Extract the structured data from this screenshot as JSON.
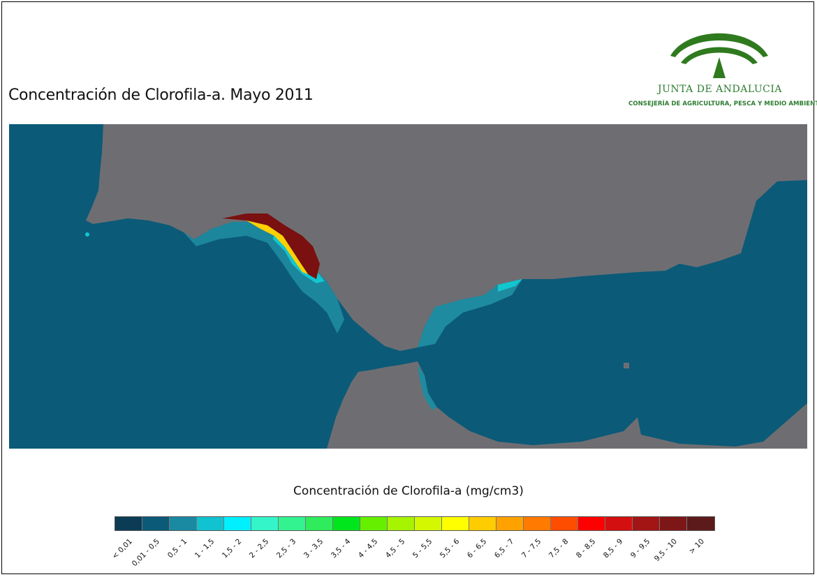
{
  "title": "Concentración de Clorofila-a. Mayo 2011",
  "logo": {
    "name": "JUNTA DE ANDALUCIA",
    "subtitle": "CONSEJERÍA DE AGRICULTURA, PESCA Y MEDIO AMBIENTE",
    "colors": {
      "green": "#2e7d32",
      "olive": "#2f7a1e"
    }
  },
  "map": {
    "colors": {
      "sea": "#0b5a78",
      "land": "#6e6e72",
      "coastal_low": "#1e8ba0",
      "coastal_mid": "#12c6cf",
      "high": "#7a1010"
    }
  },
  "legend": {
    "title": "Concentración de Clorofila-a (mg/cm3)",
    "classes": [
      {
        "label": "< 0,01",
        "color": "#0c3b56"
      },
      {
        "label": "0,01 - 0,5",
        "color": "#0b5a78"
      },
      {
        "label": "0,5 - 1",
        "color": "#1a8aa3"
      },
      {
        "label": "1 - 1,5",
        "color": "#11c2d0"
      },
      {
        "label": "1,5 - 2",
        "color": "#00f0ff"
      },
      {
        "label": "2 - 2,5",
        "color": "#33f5c9"
      },
      {
        "label": "2,5 - 3",
        "color": "#33f290"
      },
      {
        "label": "3 - 3,5",
        "color": "#2fec5c"
      },
      {
        "label": "3,5 - 4",
        "color": "#00e61c"
      },
      {
        "label": "4 - 4,5",
        "color": "#66f000"
      },
      {
        "label": "4,5 - 5",
        "color": "#a6f400"
      },
      {
        "label": "5 - 5,5",
        "color": "#d4f800"
      },
      {
        "label": "5,5 - 6",
        "color": "#ffff00"
      },
      {
        "label": "6 - 6,5",
        "color": "#ffcc00"
      },
      {
        "label": "6,5 - 7",
        "color": "#ffa200"
      },
      {
        "label": "7 - 7,5",
        "color": "#ff7a00"
      },
      {
        "label": "7,5 - 8",
        "color": "#ff4d00"
      },
      {
        "label": "8 - 8,5",
        "color": "#ff0000"
      },
      {
        "label": "8,5 - 9",
        "color": "#d40f0f"
      },
      {
        "label": "9 - 9,5",
        "color": "#a31515"
      },
      {
        "label": "9,5 - 10",
        "color": "#7d1717"
      },
      {
        "label": "> 10",
        "color": "#5c1a1a"
      }
    ]
  }
}
